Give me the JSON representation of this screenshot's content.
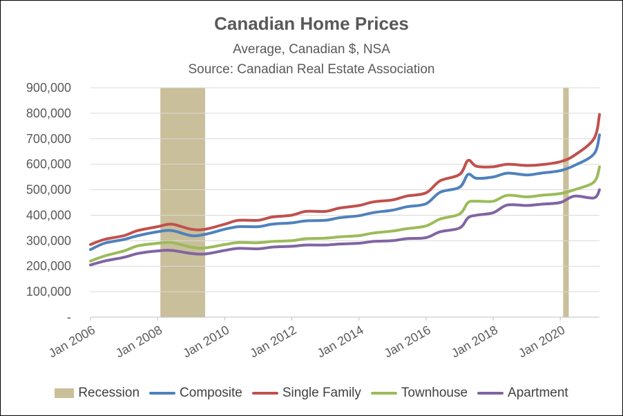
{
  "chart_data": {
    "type": "line",
    "title": "Canadian Home Prices",
    "subtitle_lines": [
      "Average, Canadian $, NSA",
      "Source:  Canadian Real Estate Association"
    ],
    "xlabel": "",
    "ylabel": "",
    "xlim": [
      "2006-01",
      "2021-03"
    ],
    "ylim": [
      0,
      900000
    ],
    "y_ticks": [
      0,
      100000,
      200000,
      300000,
      400000,
      500000,
      600000,
      700000,
      800000,
      900000
    ],
    "y_tick_labels": [
      "-",
      "100,000",
      "200,000",
      "300,000",
      "400,000",
      "500,000",
      "600,000",
      "700,000",
      "800,000",
      "900,000"
    ],
    "x_ticks": [
      "2006-01",
      "2008-01",
      "2010-01",
      "2012-01",
      "2014-01",
      "2016-01",
      "2018-01",
      "2020-01"
    ],
    "x_tick_labels": [
      "Jan 2006",
      "Jan 2008",
      "Jan 2010",
      "Jan 2012",
      "Jan 2014",
      "Jan 2016",
      "Jan 2018",
      "Jan 2020"
    ],
    "grid": "horizontal",
    "legend_position": "bottom",
    "recession": {
      "name": "Recession",
      "color": "#c9bf9a",
      "periods": [
        [
          "2008-02",
          "2009-06"
        ],
        [
          "2020-02",
          "2020-04"
        ]
      ]
    },
    "series": [
      {
        "name": "Composite",
        "color": "#4f81bd",
        "points": [
          [
            "2006-01",
            265000
          ],
          [
            "2006-06",
            290000
          ],
          [
            "2007-01",
            305000
          ],
          [
            "2007-06",
            320000
          ],
          [
            "2008-01",
            335000
          ],
          [
            "2008-06",
            340000
          ],
          [
            "2009-01",
            320000
          ],
          [
            "2009-06",
            325000
          ],
          [
            "2010-01",
            345000
          ],
          [
            "2010-06",
            355000
          ],
          [
            "2011-01",
            355000
          ],
          [
            "2011-06",
            365000
          ],
          [
            "2012-01",
            370000
          ],
          [
            "2012-06",
            378000
          ],
          [
            "2013-01",
            380000
          ],
          [
            "2013-06",
            390000
          ],
          [
            "2014-01",
            398000
          ],
          [
            "2014-06",
            410000
          ],
          [
            "2015-01",
            420000
          ],
          [
            "2015-06",
            433000
          ],
          [
            "2016-01",
            445000
          ],
          [
            "2016-06",
            490000
          ],
          [
            "2017-01",
            510000
          ],
          [
            "2017-04",
            560000
          ],
          [
            "2017-07",
            545000
          ],
          [
            "2018-01",
            550000
          ],
          [
            "2018-06",
            565000
          ],
          [
            "2019-01",
            558000
          ],
          [
            "2019-06",
            565000
          ],
          [
            "2020-01",
            575000
          ],
          [
            "2020-06",
            595000
          ],
          [
            "2021-01",
            640000
          ],
          [
            "2021-03",
            715000
          ]
        ]
      },
      {
        "name": "Single Family",
        "color": "#c0504d",
        "points": [
          [
            "2006-01",
            285000
          ],
          [
            "2006-06",
            305000
          ],
          [
            "2007-01",
            320000
          ],
          [
            "2007-06",
            340000
          ],
          [
            "2008-01",
            355000
          ],
          [
            "2008-06",
            365000
          ],
          [
            "2009-01",
            345000
          ],
          [
            "2009-06",
            345000
          ],
          [
            "2010-01",
            365000
          ],
          [
            "2010-06",
            380000
          ],
          [
            "2011-01",
            380000
          ],
          [
            "2011-06",
            393000
          ],
          [
            "2012-01",
            400000
          ],
          [
            "2012-06",
            415000
          ],
          [
            "2013-01",
            415000
          ],
          [
            "2013-06",
            428000
          ],
          [
            "2014-01",
            438000
          ],
          [
            "2014-06",
            452000
          ],
          [
            "2015-01",
            460000
          ],
          [
            "2015-06",
            475000
          ],
          [
            "2016-01",
            488000
          ],
          [
            "2016-06",
            535000
          ],
          [
            "2017-01",
            560000
          ],
          [
            "2017-04",
            615000
          ],
          [
            "2017-07",
            592000
          ],
          [
            "2018-01",
            590000
          ],
          [
            "2018-06",
            600000
          ],
          [
            "2019-01",
            595000
          ],
          [
            "2019-06",
            598000
          ],
          [
            "2020-01",
            610000
          ],
          [
            "2020-06",
            635000
          ],
          [
            "2021-01",
            700000
          ],
          [
            "2021-03",
            795000
          ]
        ]
      },
      {
        "name": "Townhouse",
        "color": "#9bbb59",
        "points": [
          [
            "2006-01",
            220000
          ],
          [
            "2006-06",
            240000
          ],
          [
            "2007-01",
            260000
          ],
          [
            "2007-06",
            280000
          ],
          [
            "2008-01",
            290000
          ],
          [
            "2008-06",
            293000
          ],
          [
            "2009-01",
            275000
          ],
          [
            "2009-06",
            272000
          ],
          [
            "2010-01",
            285000
          ],
          [
            "2010-06",
            293000
          ],
          [
            "2011-01",
            292000
          ],
          [
            "2011-06",
            297000
          ],
          [
            "2012-01",
            300000
          ],
          [
            "2012-06",
            308000
          ],
          [
            "2013-01",
            310000
          ],
          [
            "2013-06",
            315000
          ],
          [
            "2014-01",
            320000
          ],
          [
            "2014-06",
            330000
          ],
          [
            "2015-01",
            338000
          ],
          [
            "2015-06",
            347000
          ],
          [
            "2016-01",
            358000
          ],
          [
            "2016-06",
            385000
          ],
          [
            "2017-01",
            405000
          ],
          [
            "2017-04",
            450000
          ],
          [
            "2017-07",
            455000
          ],
          [
            "2018-01",
            455000
          ],
          [
            "2018-06",
            478000
          ],
          [
            "2019-01",
            472000
          ],
          [
            "2019-06",
            478000
          ],
          [
            "2020-01",
            485000
          ],
          [
            "2020-06",
            500000
          ],
          [
            "2021-01",
            530000
          ],
          [
            "2021-03",
            590000
          ]
        ]
      },
      {
        "name": "Apartment",
        "color": "#8064a2",
        "points": [
          [
            "2006-01",
            205000
          ],
          [
            "2006-06",
            220000
          ],
          [
            "2007-01",
            235000
          ],
          [
            "2007-06",
            250000
          ],
          [
            "2008-01",
            260000
          ],
          [
            "2008-06",
            262000
          ],
          [
            "2009-01",
            250000
          ],
          [
            "2009-06",
            248000
          ],
          [
            "2010-01",
            262000
          ],
          [
            "2010-06",
            270000
          ],
          [
            "2011-01",
            268000
          ],
          [
            "2011-06",
            275000
          ],
          [
            "2012-01",
            278000
          ],
          [
            "2012-06",
            283000
          ],
          [
            "2013-01",
            283000
          ],
          [
            "2013-06",
            287000
          ],
          [
            "2014-01",
            290000
          ],
          [
            "2014-06",
            297000
          ],
          [
            "2015-01",
            300000
          ],
          [
            "2015-06",
            308000
          ],
          [
            "2016-01",
            312000
          ],
          [
            "2016-06",
            335000
          ],
          [
            "2017-01",
            350000
          ],
          [
            "2017-04",
            390000
          ],
          [
            "2017-07",
            400000
          ],
          [
            "2018-01",
            410000
          ],
          [
            "2018-06",
            440000
          ],
          [
            "2019-01",
            438000
          ],
          [
            "2019-06",
            443000
          ],
          [
            "2020-01",
            450000
          ],
          [
            "2020-06",
            475000
          ],
          [
            "2021-01",
            468000
          ],
          [
            "2021-03",
            500000
          ]
        ]
      }
    ]
  }
}
